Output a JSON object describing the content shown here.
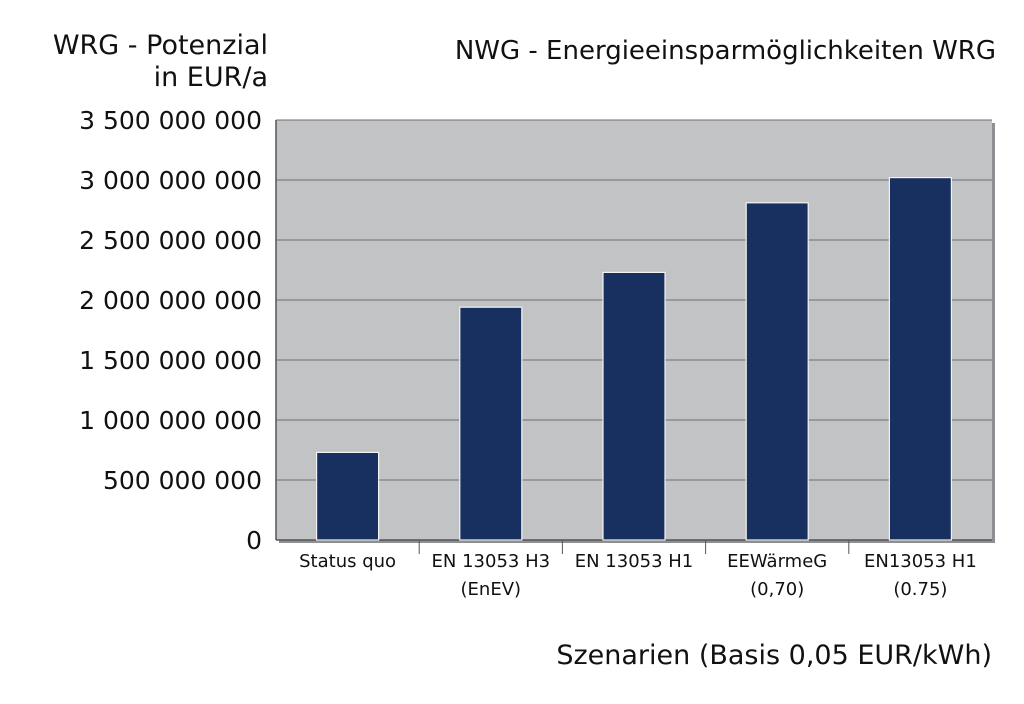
{
  "chart_data": {
    "type": "bar",
    "title": "NWG - Energieeinsparmöglichkeiten WRG",
    "ylabel": [
      "WRG - Potenzial",
      "in EUR/a"
    ],
    "xlabel": "Szenarien (Basis 0,05 EUR/kWh)",
    "categories": [
      [
        "Status quo"
      ],
      [
        "EN 13053 H3",
        "(EnEV)"
      ],
      [
        "EN 13053 H1"
      ],
      [
        "EEWärmeG",
        "(0,70)"
      ],
      [
        "EN13053 H1",
        "(0.75)"
      ]
    ],
    "values": [
      730000000,
      1940000000,
      2230000000,
      2810000000,
      3020000000
    ],
    "ylim": [
      0,
      3500000000
    ],
    "yticks": [
      0,
      500000000,
      1000000000,
      1500000000,
      2000000000,
      2500000000,
      3000000000,
      3500000000
    ],
    "ytick_labels": [
      "0",
      "500 000 000",
      "1 000 000 000",
      "1 500 000 000",
      "2 000 000 000",
      "2 500 000 000",
      "3 000 000 000",
      "3 500 000 000"
    ],
    "grid": true,
    "colors": {
      "bar": "#18305f",
      "plot_background": "#c2c3c5",
      "gridline": "#6e6f72"
    }
  }
}
